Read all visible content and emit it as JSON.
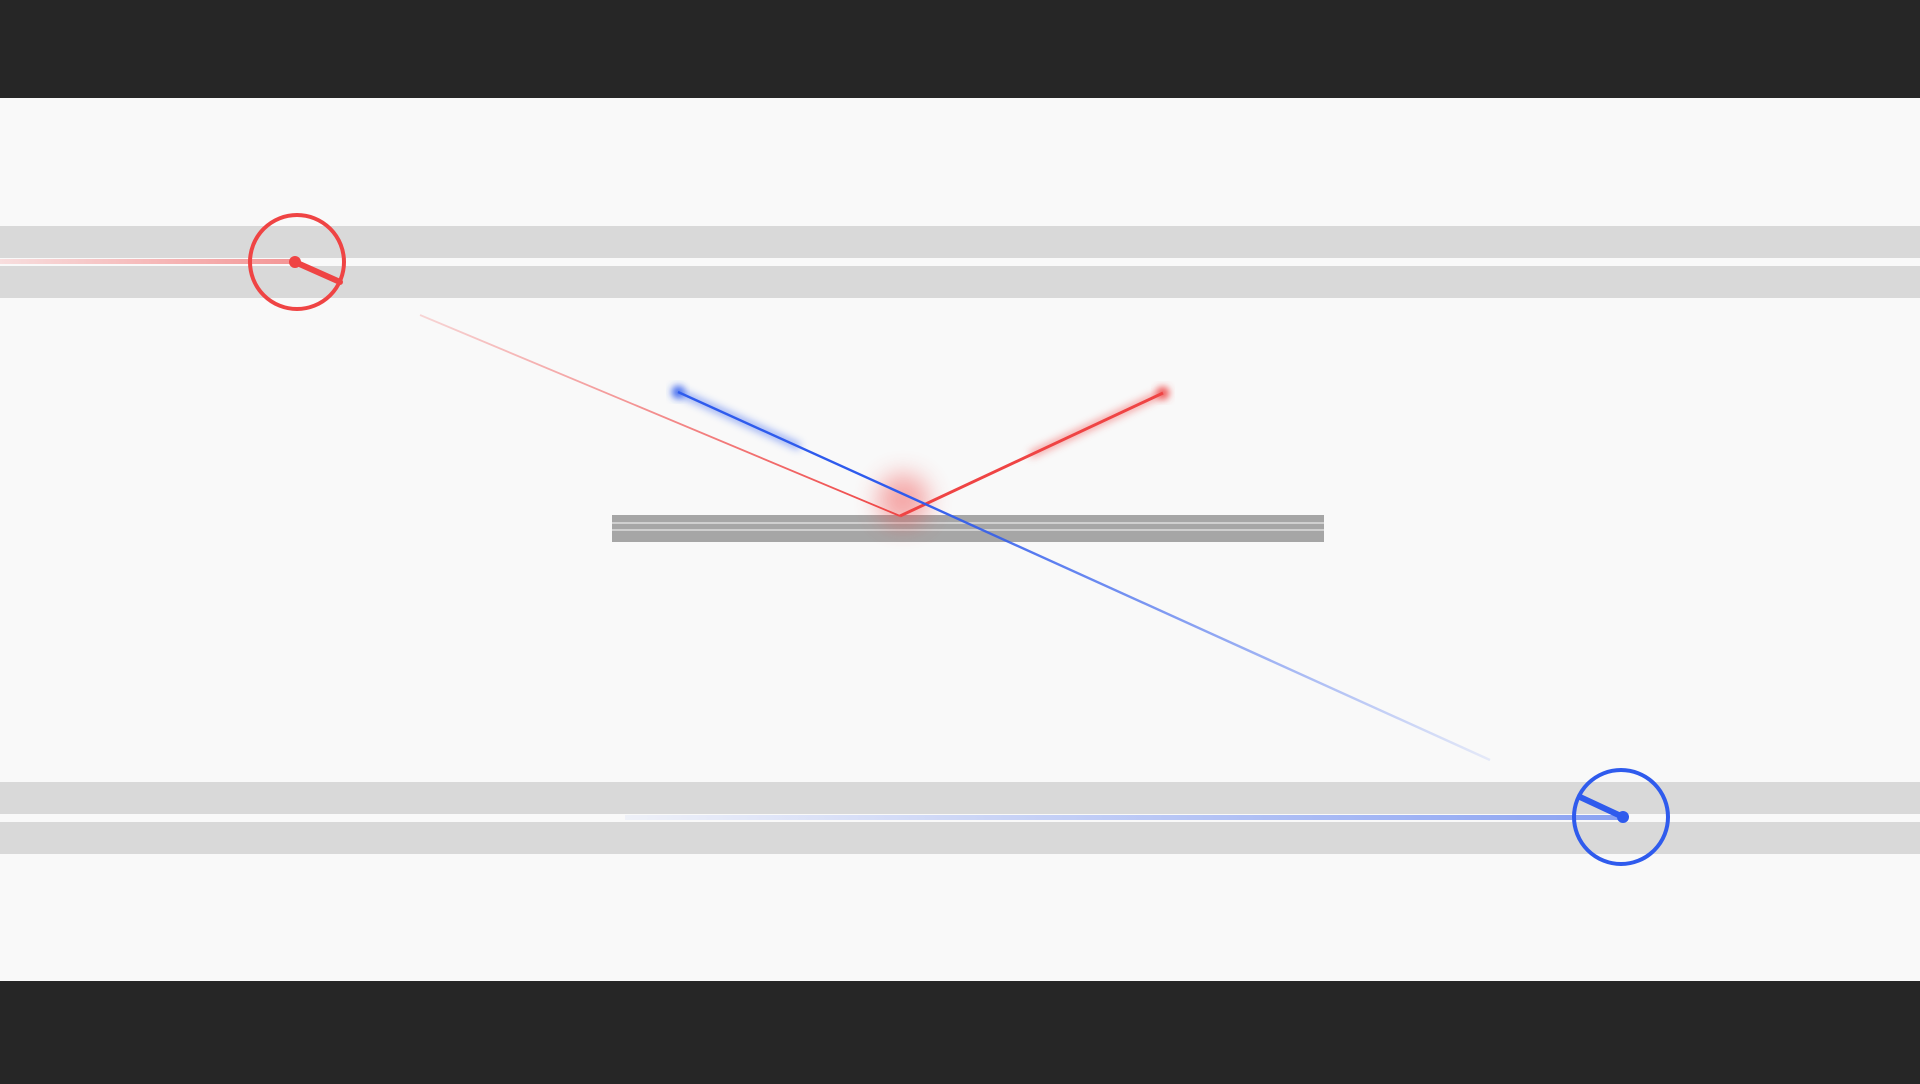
{
  "game": {
    "colors": {
      "letterbox": "#262626",
      "field": "#f9f9f9",
      "track": "#d9d9d9",
      "track_divider": "#ffffff",
      "platform": "#a6a6a6",
      "platform_stripe": "#cfcfcf",
      "red": "#ef4444",
      "blue": "#2f5bed"
    },
    "players": [
      {
        "id": "red",
        "color_key": "red",
        "lane": "top"
      },
      {
        "id": "blue",
        "color_key": "blue",
        "lane": "bottom"
      }
    ],
    "icons": {
      "red_player": "turret-icon",
      "blue_player": "turret-icon"
    }
  }
}
